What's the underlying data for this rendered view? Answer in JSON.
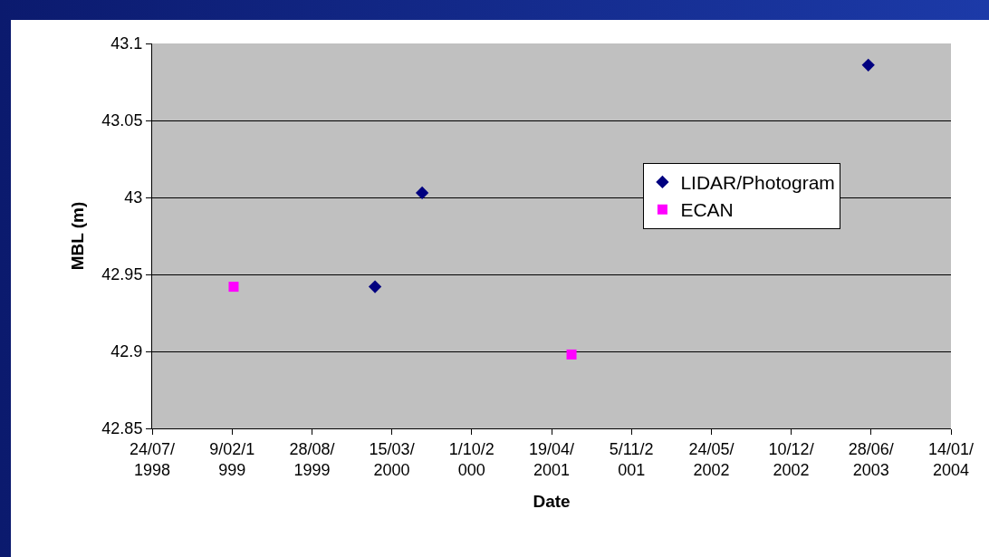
{
  "chart_data": {
    "type": "scatter",
    "xlabel": "Date",
    "ylabel": "MBL (m)",
    "xlim": [
      "1998-07-24",
      "2004-01-14"
    ],
    "xticks": [
      {
        "value": "1998-07-24",
        "label": "24/07/\n1998"
      },
      {
        "value": "1999-02-09",
        "label": "9/02/1\n999"
      },
      {
        "value": "1999-08-28",
        "label": "28/08/\n1999"
      },
      {
        "value": "2000-03-15",
        "label": "15/03/\n2000"
      },
      {
        "value": "2000-10-01",
        "label": "1/10/2\n000"
      },
      {
        "value": "2001-04-19",
        "label": "19/04/\n2001"
      },
      {
        "value": "2001-11-05",
        "label": "5/11/2\n001"
      },
      {
        "value": "2002-05-24",
        "label": "24/05/\n2002"
      },
      {
        "value": "2002-12-10",
        "label": "10/12/\n2002"
      },
      {
        "value": "2003-06-28",
        "label": "28/06/\n2003"
      },
      {
        "value": "2004-01-14",
        "label": "14/01/\n2004"
      }
    ],
    "ylim": [
      42.85,
      43.1
    ],
    "yticks": [
      42.85,
      42.9,
      42.95,
      43,
      43.05,
      43.1
    ],
    "grid": "y",
    "legend": "right",
    "series": [
      {
        "name": "LIDAR/Photogram",
        "color": "#000080",
        "marker": "diamond",
        "x": [
          "2000-02-02",
          "2000-05-30",
          "2003-06-21"
        ],
        "values": [
          42.942,
          43.003,
          43.086
        ]
      },
      {
        "name": "ECAN",
        "color": "#ff00ff",
        "marker": "square",
        "x": [
          "1999-02-13",
          "2001-06-08"
        ],
        "values": [
          42.942,
          42.898
        ]
      }
    ]
  }
}
